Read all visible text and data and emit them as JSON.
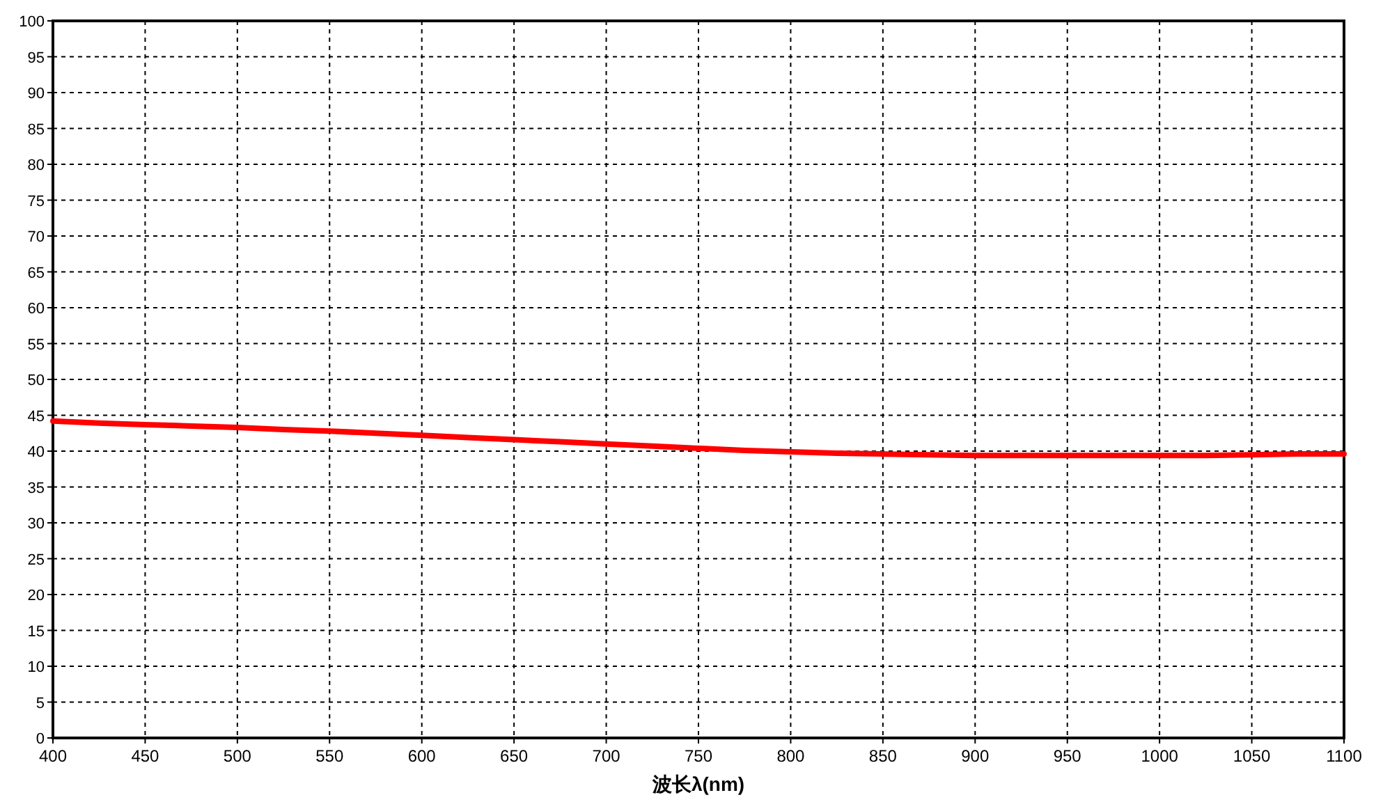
{
  "chart_data": {
    "type": "line",
    "xlabel": "波长λ(nm)",
    "x": [
      400,
      425,
      450,
      475,
      500,
      525,
      550,
      575,
      600,
      625,
      650,
      675,
      700,
      725,
      750,
      775,
      800,
      825,
      850,
      875,
      900,
      950,
      1000,
      1025,
      1050,
      1075,
      1100
    ],
    "series": [
      {
        "color": "#ff0000",
        "values": [
          44.2,
          43.9,
          43.7,
          43.5,
          43.3,
          43.0,
          42.8,
          42.5,
          42.2,
          41.9,
          41.6,
          41.3,
          41.0,
          40.7,
          40.4,
          40.1,
          39.9,
          39.7,
          39.6,
          39.5,
          39.4,
          39.4,
          39.4,
          39.4,
          39.5,
          39.6,
          39.6
        ]
      }
    ],
    "xlim": [
      400,
      1100
    ],
    "xticks": [
      400,
      450,
      500,
      550,
      600,
      650,
      700,
      750,
      800,
      850,
      900,
      950,
      1000,
      1050,
      1100
    ],
    "ylim": [
      0,
      100
    ],
    "yticks": [
      0,
      5,
      10,
      15,
      20,
      25,
      30,
      35,
      40,
      45,
      50,
      55,
      60,
      65,
      70,
      75,
      80,
      85,
      90,
      95,
      100
    ],
    "grid": true,
    "marker": "none",
    "line_style": "solid"
  }
}
